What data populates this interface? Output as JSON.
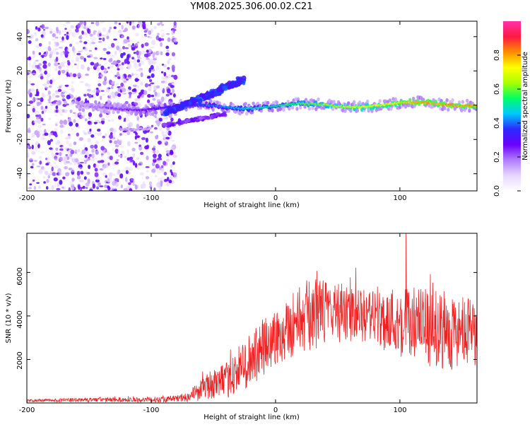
{
  "colors": {
    "snr_line": "#ee2222",
    "spectrogram_colormap": [
      "#ffffff",
      "#e6d6ff",
      "#b07cff",
      "#6a00ff",
      "#2a2aff",
      "#00c8ff",
      "#00ff66",
      "#a8ff00",
      "#ffff00",
      "#ff8c00",
      "#ff1744",
      "#ff33aa"
    ]
  },
  "chart_data": [
    {
      "type": "heatmap",
      "title": "YM08.2025.306.00.02.C21",
      "xlabel": "Height of straight line (km)",
      "ylabel": "Frequency (Hz)",
      "xlim": [
        -200,
        162
      ],
      "ylim": [
        -50,
        49
      ],
      "xticks": [
        "-200",
        "-100",
        "0",
        "100"
      ],
      "yticks": [
        "-40",
        "-20",
        "0",
        "20",
        "40"
      ],
      "colorbar": {
        "label": "Normalized spectral amplitude",
        "range": [
          0,
          1
        ],
        "ticks": [
          "0.0",
          "0.2",
          "0.4",
          "0.6",
          "0.8"
        ]
      },
      "features": [
        {
          "name": "scattered noise",
          "x_range": [
            -200,
            -80
          ],
          "freq_range": [
            -50,
            49
          ],
          "amplitude": 0.1
        },
        {
          "name": "central band",
          "x_range": [
            -160,
            162
          ],
          "freq_center": 0,
          "amplitude_start": 0.15,
          "amplitude_end": 0.8
        },
        {
          "name": "upper chirp",
          "x_range": [
            -90,
            -25
          ],
          "freq_range": [
            -5,
            15
          ],
          "amplitude": 0.35
        },
        {
          "name": "lower chirp",
          "x_range": [
            -90,
            -40
          ],
          "freq_range": [
            -12,
            -5
          ],
          "amplitude": 0.25
        },
        {
          "name": "lower fragment",
          "x_range": [
            -125,
            -100
          ],
          "freq_center": -14,
          "amplitude": 0.12
        }
      ]
    },
    {
      "type": "line",
      "xlabel": "Height of straight line (km)",
      "ylabel": "SNR (10 * v/v)",
      "xlim": [
        -200,
        162
      ],
      "ylim": [
        0,
        7800
      ],
      "xticks": [
        "-200",
        "-100",
        "0",
        "100"
      ],
      "yticks": [
        "2000",
        "4000",
        "6000"
      ],
      "series": [
        {
          "name": "SNR",
          "envelope_x": [
            -200,
            -150,
            -100,
            -80,
            -70,
            -60,
            -50,
            -40,
            -30,
            -20,
            -10,
            0,
            10,
            20,
            30,
            40,
            50,
            60,
            70,
            80,
            90,
            100,
            110,
            120,
            130,
            140,
            150,
            162
          ],
          "envelope_mean": [
            100,
            150,
            150,
            200,
            300,
            600,
            900,
            1000,
            1500,
            2000,
            2500,
            3000,
            3500,
            3900,
            4100,
            4200,
            4200,
            4000,
            4000,
            3900,
            3800,
            3800,
            3600,
            3500,
            3400,
            3300,
            3200,
            3100
          ],
          "envelope_spread": [
            60,
            100,
            120,
            150,
            250,
            500,
            700,
            800,
            1100,
            1300,
            1400,
            1400,
            1500,
            1600,
            1700,
            1500,
            1400,
            1300,
            1200,
            1300,
            1500,
            1700,
            1800,
            1800,
            1800,
            1800,
            1700,
            1600
          ],
          "peak": {
            "x": 105,
            "y": 7800
          }
        }
      ]
    }
  ]
}
